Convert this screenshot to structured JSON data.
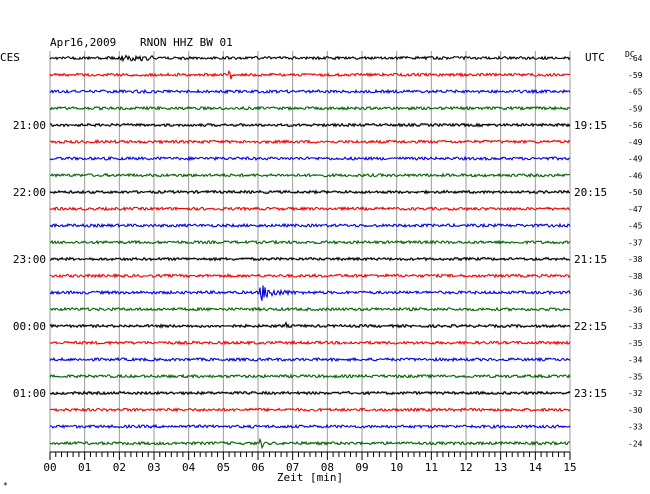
{
  "header": {
    "date": "Apr16,2009",
    "station": "RNON HHZ BW 01",
    "left_timezone": "CES",
    "right_timezone": "UTC",
    "dc_label": "DC"
  },
  "footer": {
    "xlabel": "Zeit [min]",
    "corner_mark": "*"
  },
  "colors": {
    "cycle": [
      "#000000",
      "#ee0000",
      "#0000dd",
      "#006400"
    ],
    "grid": "#9a9a9a",
    "background": "#ffffff"
  },
  "chart_data": {
    "type": "line",
    "title": "Apr16,2009   RNON HHZ BW 01",
    "xlabel": "Zeit [min]",
    "ylabel": "",
    "xlim": [
      0,
      15
    ],
    "x_ticks": [
      "00",
      "01",
      "02",
      "03",
      "04",
      "05",
      "06",
      "07",
      "08",
      "09",
      "10",
      "11",
      "12",
      "13",
      "14",
      "15"
    ],
    "grid": true,
    "trace_count": 24,
    "left_time_labels": [
      {
        "row": 4,
        "label": "21:00"
      },
      {
        "row": 8,
        "label": "22:00"
      },
      {
        "row": 12,
        "label": "23:00"
      },
      {
        "row": 16,
        "label": "00:00"
      },
      {
        "row": 20,
        "label": "01:00"
      }
    ],
    "right_time_labels": [
      {
        "row": 4,
        "label": "19:15"
      },
      {
        "row": 8,
        "label": "20:15"
      },
      {
        "row": 12,
        "label": "21:15"
      },
      {
        "row": 16,
        "label": "22:15"
      },
      {
        "row": 20,
        "label": "23:15"
      }
    ],
    "dc_offsets": [
      -64,
      -59,
      -65,
      -59,
      -56,
      -49,
      -49,
      -46,
      -50,
      -47,
      -45,
      -37,
      -38,
      -38,
      -36,
      -36,
      -33,
      -35,
      -34,
      -35,
      -32,
      -30,
      -33,
      -24
    ],
    "events": [
      {
        "row": 0,
        "minute": 2.0,
        "end_minute": 3.0,
        "amplitude": 0.35,
        "kind": "noise"
      },
      {
        "row": 1,
        "minute": 5.2,
        "amplitude": 0.8,
        "kind": "spike"
      },
      {
        "row": 14,
        "minute": 6.05,
        "amplitude": 1.6,
        "kind": "quake"
      },
      {
        "row": 16,
        "minute": 6.8,
        "amplitude": 0.6,
        "kind": "spike"
      },
      {
        "row": 23,
        "minute": 6.1,
        "amplitude": 0.8,
        "kind": "spike"
      }
    ]
  }
}
